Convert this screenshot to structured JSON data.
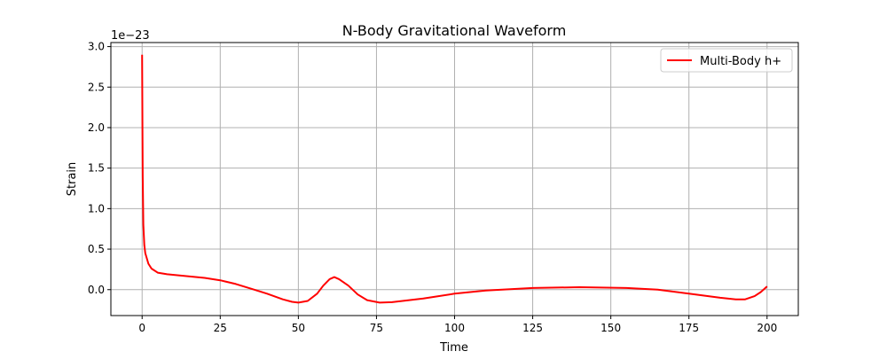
{
  "chart_data": {
    "type": "line",
    "title": "N-Body Gravitational Waveform",
    "xlabel": "Time",
    "ylabel": "Strain",
    "y_offset_label": "1e−23",
    "xlim": [
      -10,
      210
    ],
    "ylim": [
      -0.32,
      3.05
    ],
    "x_ticks": [
      0,
      25,
      50,
      75,
      100,
      125,
      150,
      175,
      200
    ],
    "x_tick_labels": [
      "0",
      "25",
      "50",
      "75",
      "100",
      "125",
      "150",
      "175",
      "200"
    ],
    "y_ticks": [
      0,
      0.5,
      1.0,
      1.5,
      2.0,
      2.5,
      3.0
    ],
    "y_tick_labels": [
      "0.0",
      "0.5",
      "1.0",
      "1.5",
      "2.0",
      "2.5",
      "3.0"
    ],
    "grid": true,
    "legend_position": "top-right",
    "series": [
      {
        "name": "Multi-Body h+",
        "color": "#ff0000",
        "x": [
          0,
          0.1,
          0.2,
          0.4,
          0.7,
          1,
          2,
          3,
          5,
          8,
          12,
          16,
          20,
          25,
          30,
          35,
          40,
          45,
          48,
          50,
          53,
          56,
          58,
          60,
          61.5,
          63,
          66,
          69,
          72,
          76,
          80,
          90,
          100,
          110,
          125,
          140,
          155,
          165,
          175,
          185,
          190,
          193,
          196,
          198,
          200
        ],
        "y": [
          2.9,
          2.0,
          1.4,
          0.8,
          0.55,
          0.45,
          0.32,
          0.26,
          0.21,
          0.19,
          0.175,
          0.16,
          0.145,
          0.115,
          0.07,
          0.01,
          -0.05,
          -0.12,
          -0.15,
          -0.16,
          -0.14,
          -0.05,
          0.05,
          0.13,
          0.155,
          0.13,
          0.05,
          -0.06,
          -0.13,
          -0.16,
          -0.155,
          -0.11,
          -0.05,
          -0.01,
          0.02,
          0.03,
          0.02,
          0.0,
          -0.05,
          -0.1,
          -0.12,
          -0.12,
          -0.08,
          -0.03,
          0.04
        ]
      }
    ]
  }
}
